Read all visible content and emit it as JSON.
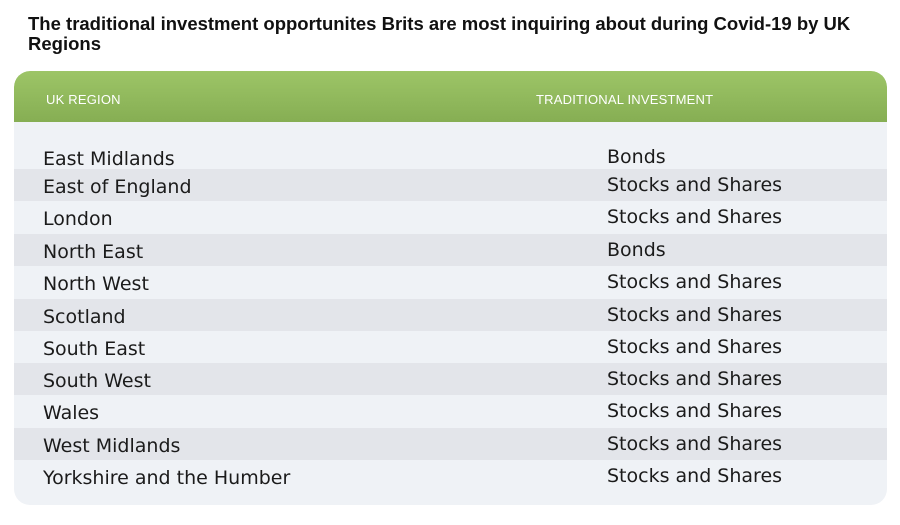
{
  "title": "The traditional investment opportunites Brits are most inquiring about during Covid-19 by UK Regions",
  "table": {
    "headers": {
      "region": "UK REGION",
      "investment": "TRADITIONAL INVESTMENT"
    },
    "rows": [
      {
        "region": "East Midlands",
        "investment": "Bonds"
      },
      {
        "region": "East of England",
        "investment": "Stocks and Shares"
      },
      {
        "region": "London",
        "investment": "Stocks and Shares"
      },
      {
        "region": "North East",
        "investment": "Bonds"
      },
      {
        "region": "North West",
        "investment": "Stocks and Shares"
      },
      {
        "region": "Scotland",
        "investment": "Stocks and Shares"
      },
      {
        "region": "South East",
        "investment": "Stocks and Shares"
      },
      {
        "region": "South West",
        "investment": "Stocks and Shares"
      },
      {
        "region": "Wales",
        "investment": "Stocks and Shares"
      },
      {
        "region": "West Midlands",
        "investment": "Stocks and Shares"
      },
      {
        "region": "Yorkshire and the Humber",
        "investment": "Stocks and Shares"
      }
    ]
  },
  "colors": {
    "header_green": "#93bb5c",
    "row_light": "#eff2f6",
    "row_shaded": "#e3e5ea"
  }
}
